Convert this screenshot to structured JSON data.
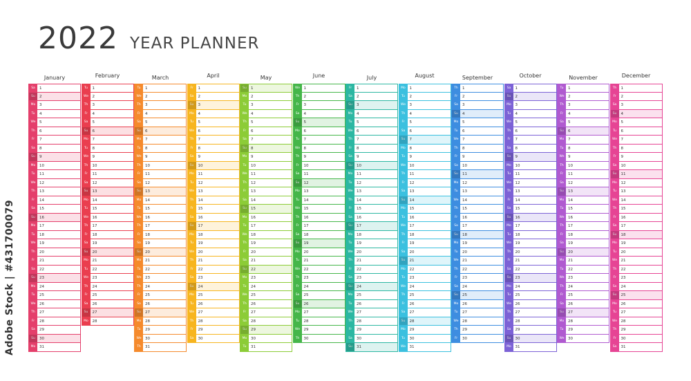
{
  "header": {
    "year": "2022",
    "title": "YEAR PLANNER"
  },
  "side_text": "Adobe Stock | #431700079",
  "weekday_abbr": [
    "Mo",
    "Tu",
    "We",
    "Th",
    "Fr",
    "Sa",
    "Su"
  ],
  "months": [
    {
      "name": "January",
      "start": 5,
      "days": 31,
      "color": "#e43f6b"
    },
    {
      "name": "February",
      "start": 1,
      "days": 28,
      "color": "#ea3e4f"
    },
    {
      "name": "March",
      "start": 1,
      "days": 31,
      "color": "#f58a2c"
    },
    {
      "name": "April",
      "start": 4,
      "days": 30,
      "color": "#f7b51f"
    },
    {
      "name": "May",
      "start": 6,
      "days": 31,
      "color": "#8ccc37"
    },
    {
      "name": "June",
      "start": 2,
      "days": 30,
      "color": "#45b649"
    },
    {
      "name": "July",
      "start": 4,
      "days": 31,
      "color": "#2cb7a2"
    },
    {
      "name": "August",
      "start": 0,
      "days": 31,
      "color": "#3bc0df"
    },
    {
      "name": "September",
      "start": 3,
      "days": 30,
      "color": "#3d8de0"
    },
    {
      "name": "October",
      "start": 5,
      "days": 31,
      "color": "#7c62d6"
    },
    {
      "name": "November",
      "start": 1,
      "days": 30,
      "color": "#b05ad0"
    },
    {
      "name": "December",
      "start": 3,
      "days": 31,
      "color": "#e64494"
    }
  ]
}
